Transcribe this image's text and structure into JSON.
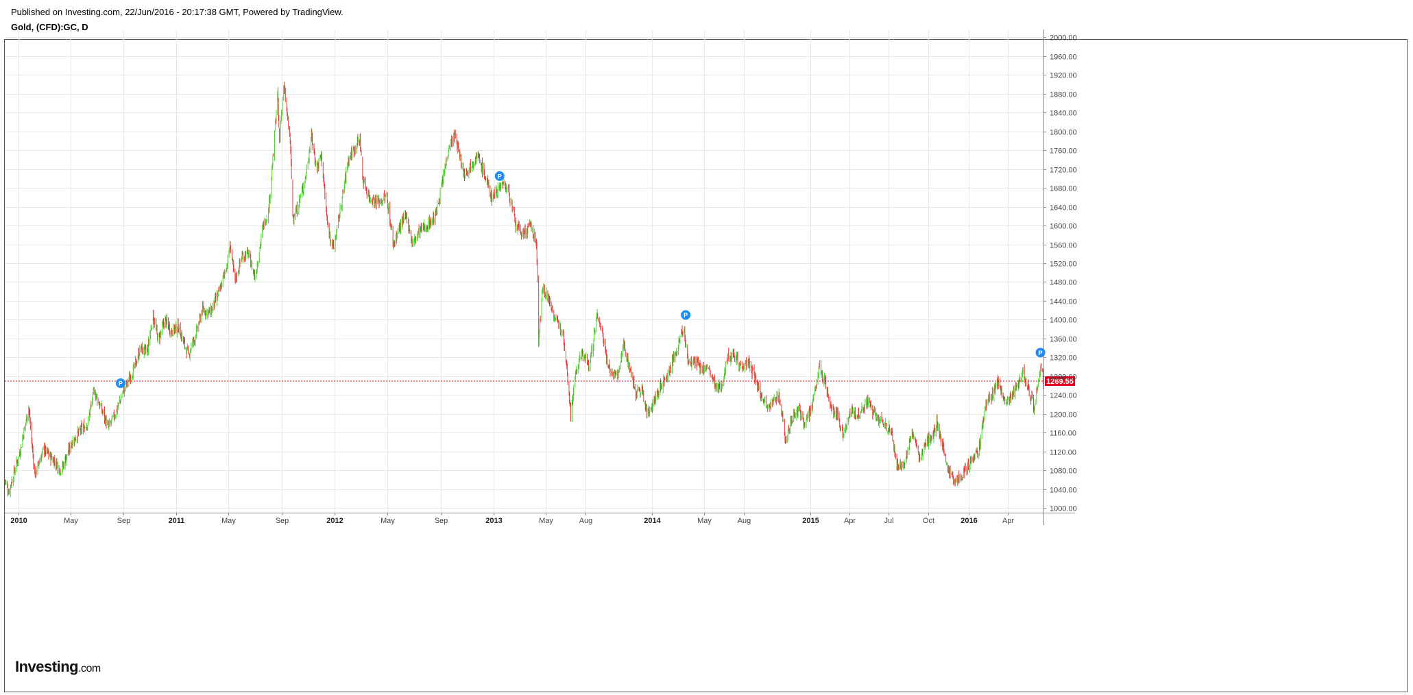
{
  "header": {
    "published": "Published on Investing.com, 22/Jun/2016 - 20:17:38 GMT, Powered by TradingView.",
    "symbol": "Gold, (CFD):GC, D"
  },
  "logo": {
    "main": "Investing",
    "suffix": ".com"
  },
  "chart_data": {
    "type": "candlestick",
    "title": "",
    "xlabel": "",
    "ylabel": "",
    "ylim": [
      990,
      2015
    ],
    "yticks": [
      1000,
      1040,
      1080,
      1120,
      1160,
      1200,
      1240,
      1280,
      1320,
      1360,
      1400,
      1440,
      1480,
      1520,
      1560,
      1600,
      1640,
      1680,
      1720,
      1760,
      1800,
      1840,
      1880,
      1920,
      1960,
      2000
    ],
    "x_range": [
      "2009-12-01",
      "2016-06-22"
    ],
    "xticks": [
      {
        "date": "2010-01-01",
        "label": "2010",
        "bold": true
      },
      {
        "date": "2010-05-01",
        "label": "May",
        "bold": false
      },
      {
        "date": "2010-09-01",
        "label": "Sep",
        "bold": false
      },
      {
        "date": "2011-01-01",
        "label": "2011",
        "bold": true
      },
      {
        "date": "2011-05-01",
        "label": "May",
        "bold": false
      },
      {
        "date": "2011-09-01",
        "label": "Sep",
        "bold": false
      },
      {
        "date": "2012-01-01",
        "label": "2012",
        "bold": true
      },
      {
        "date": "2012-05-01",
        "label": "May",
        "bold": false
      },
      {
        "date": "2012-09-01",
        "label": "Sep",
        "bold": false
      },
      {
        "date": "2013-01-01",
        "label": "2013",
        "bold": true
      },
      {
        "date": "2013-05-01",
        "label": "May",
        "bold": false
      },
      {
        "date": "2013-08-01",
        "label": "Aug",
        "bold": false
      },
      {
        "date": "2014-01-01",
        "label": "2014",
        "bold": true
      },
      {
        "date": "2014-05-01",
        "label": "May",
        "bold": false
      },
      {
        "date": "2014-08-01",
        "label": "Aug",
        "bold": false
      },
      {
        "date": "2015-01-01",
        "label": "2015",
        "bold": true
      },
      {
        "date": "2015-04-01",
        "label": "Apr",
        "bold": false
      },
      {
        "date": "2015-07-01",
        "label": "Jul",
        "bold": false
      },
      {
        "date": "2015-10-01",
        "label": "Oct",
        "bold": false
      },
      {
        "date": "2016-01-01",
        "label": "2016",
        "bold": true
      },
      {
        "date": "2016-04-01",
        "label": "Apr",
        "bold": false
      }
    ],
    "price_path": [
      [
        "2009-12-01",
        1060
      ],
      [
        "2009-12-10",
        1035
      ],
      [
        "2010-01-05",
        1120
      ],
      [
        "2010-01-25",
        1215
      ],
      [
        "2010-02-08",
        1070
      ],
      [
        "2010-03-01",
        1125
      ],
      [
        "2010-03-25",
        1100
      ],
      [
        "2010-04-10",
        1080
      ],
      [
        "2010-05-05",
        1140
      ],
      [
        "2010-05-25",
        1165
      ],
      [
        "2010-06-10",
        1180
      ],
      [
        "2010-06-25",
        1250
      ],
      [
        "2010-07-10",
        1215
      ],
      [
        "2010-07-28",
        1170
      ],
      [
        "2010-08-15",
        1205
      ],
      [
        "2010-09-01",
        1250
      ],
      [
        "2010-09-25",
        1295
      ],
      [
        "2010-10-10",
        1340
      ],
      [
        "2010-10-25",
        1330
      ],
      [
        "2010-11-08",
        1410
      ],
      [
        "2010-11-20",
        1355
      ],
      [
        "2010-12-05",
        1400
      ],
      [
        "2010-12-20",
        1375
      ],
      [
        "2011-01-05",
        1385
      ],
      [
        "2011-01-28",
        1325
      ],
      [
        "2011-02-15",
        1370
      ],
      [
        "2011-03-01",
        1420
      ],
      [
        "2011-03-20",
        1415
      ],
      [
        "2011-04-10",
        1460
      ],
      [
        "2011-04-28",
        1520
      ],
      [
        "2011-05-05",
        1560
      ],
      [
        "2011-05-15",
        1480
      ],
      [
        "2011-06-01",
        1535
      ],
      [
        "2011-06-15",
        1540
      ],
      [
        "2011-07-01",
        1490
      ],
      [
        "2011-07-20",
        1600
      ],
      [
        "2011-08-01",
        1630
      ],
      [
        "2011-08-12",
        1750
      ],
      [
        "2011-08-22",
        1880
      ],
      [
        "2011-08-26",
        1780
      ],
      [
        "2011-09-05",
        1900
      ],
      [
        "2011-09-20",
        1780
      ],
      [
        "2011-09-26",
        1620
      ],
      [
        "2011-10-05",
        1630
      ],
      [
        "2011-10-25",
        1700
      ],
      [
        "2011-11-08",
        1790
      ],
      [
        "2011-11-20",
        1720
      ],
      [
        "2011-12-01",
        1750
      ],
      [
        "2011-12-15",
        1600
      ],
      [
        "2011-12-29",
        1550
      ],
      [
        "2012-01-15",
        1640
      ],
      [
        "2012-02-01",
        1740
      ],
      [
        "2012-02-28",
        1785
      ],
      [
        "2012-03-05",
        1700
      ],
      [
        "2012-03-20",
        1660
      ],
      [
        "2012-04-10",
        1650
      ],
      [
        "2012-04-30",
        1660
      ],
      [
        "2012-05-15",
        1560
      ],
      [
        "2012-05-31",
        1600
      ],
      [
        "2012-06-15",
        1620
      ],
      [
        "2012-06-28",
        1560
      ],
      [
        "2012-07-15",
        1590
      ],
      [
        "2012-08-01",
        1600
      ],
      [
        "2012-08-20",
        1620
      ],
      [
        "2012-09-05",
        1690
      ],
      [
        "2012-09-20",
        1770
      ],
      [
        "2012-10-04",
        1790
      ],
      [
        "2012-10-25",
        1710
      ],
      [
        "2012-11-10",
        1730
      ],
      [
        "2012-11-25",
        1750
      ],
      [
        "2012-12-10",
        1710
      ],
      [
        "2012-12-28",
        1660
      ],
      [
        "2013-01-20",
        1690
      ],
      [
        "2013-02-05",
        1675
      ],
      [
        "2013-02-20",
        1600
      ],
      [
        "2013-03-10",
        1580
      ],
      [
        "2013-03-28",
        1600
      ],
      [
        "2013-04-10",
        1560
      ],
      [
        "2013-04-15",
        1360
      ],
      [
        "2013-04-25",
        1470
      ],
      [
        "2013-05-10",
        1440
      ],
      [
        "2013-05-28",
        1390
      ],
      [
        "2013-06-10",
        1380
      ],
      [
        "2013-06-20",
        1290
      ],
      [
        "2013-06-28",
        1200
      ],
      [
        "2013-07-10",
        1290
      ],
      [
        "2013-07-25",
        1330
      ],
      [
        "2013-08-10",
        1300
      ],
      [
        "2013-08-28",
        1410
      ],
      [
        "2013-09-10",
        1370
      ],
      [
        "2013-09-20",
        1310
      ],
      [
        "2013-10-01",
        1285
      ],
      [
        "2013-10-15",
        1280
      ],
      [
        "2013-10-28",
        1350
      ],
      [
        "2013-11-10",
        1300
      ],
      [
        "2013-11-25",
        1245
      ],
      [
        "2013-12-10",
        1250
      ],
      [
        "2013-12-20",
        1200
      ],
      [
        "2014-01-05",
        1225
      ],
      [
        "2014-01-25",
        1265
      ],
      [
        "2014-02-10",
        1290
      ],
      [
        "2014-03-01",
        1340
      ],
      [
        "2014-03-15",
        1385
      ],
      [
        "2014-03-25",
        1310
      ],
      [
        "2014-04-10",
        1310
      ],
      [
        "2014-04-25",
        1295
      ],
      [
        "2014-05-10",
        1300
      ],
      [
        "2014-05-30",
        1250
      ],
      [
        "2014-06-10",
        1260
      ],
      [
        "2014-06-25",
        1320
      ],
      [
        "2014-07-10",
        1330
      ],
      [
        "2014-07-25",
        1300
      ],
      [
        "2014-08-10",
        1310
      ],
      [
        "2014-08-25",
        1280
      ],
      [
        "2014-09-10",
        1240
      ],
      [
        "2014-09-25",
        1220
      ],
      [
        "2014-10-10",
        1225
      ],
      [
        "2014-10-20",
        1245
      ],
      [
        "2014-11-05",
        1145
      ],
      [
        "2014-11-20",
        1190
      ],
      [
        "2014-12-05",
        1210
      ],
      [
        "2014-12-20",
        1180
      ],
      [
        "2015-01-05",
        1210
      ],
      [
        "2015-01-22",
        1300
      ],
      [
        "2015-02-05",
        1265
      ],
      [
        "2015-02-20",
        1205
      ],
      [
        "2015-03-05",
        1200
      ],
      [
        "2015-03-18",
        1150
      ],
      [
        "2015-04-01",
        1200
      ],
      [
        "2015-04-20",
        1200
      ],
      [
        "2015-05-15",
        1225
      ],
      [
        "2015-06-01",
        1190
      ],
      [
        "2015-06-20",
        1180
      ],
      [
        "2015-07-01",
        1170
      ],
      [
        "2015-07-10",
        1150
      ],
      [
        "2015-07-20",
        1090
      ],
      [
        "2015-08-05",
        1090
      ],
      [
        "2015-08-25",
        1160
      ],
      [
        "2015-09-10",
        1105
      ],
      [
        "2015-09-25",
        1140
      ],
      [
        "2015-10-10",
        1155
      ],
      [
        "2015-10-20",
        1180
      ],
      [
        "2015-11-01",
        1140
      ],
      [
        "2015-11-15",
        1080
      ],
      [
        "2015-12-01",
        1060
      ],
      [
        "2015-12-15",
        1065
      ],
      [
        "2016-01-05",
        1100
      ],
      [
        "2016-01-25",
        1120
      ],
      [
        "2016-02-10",
        1220
      ],
      [
        "2016-02-25",
        1240
      ],
      [
        "2016-03-10",
        1270
      ],
      [
        "2016-03-25",
        1220
      ],
      [
        "2016-04-10",
        1240
      ],
      [
        "2016-04-25",
        1270
      ],
      [
        "2016-05-05",
        1290
      ],
      [
        "2016-05-20",
        1250
      ],
      [
        "2016-06-01",
        1210
      ],
      [
        "2016-06-10",
        1275
      ],
      [
        "2016-06-17",
        1300
      ],
      [
        "2016-06-22",
        1269.55
      ]
    ],
    "current_price": 1269.55,
    "current_price_label": "1269.55",
    "up_color": "#4ccd2f",
    "down_color": "#e03a3a",
    "price_line_color": "#e0001b",
    "grid": true,
    "markers": [
      {
        "date": "2010-08-25",
        "price": 1265,
        "label": "P"
      },
      {
        "date": "2013-01-15",
        "price": 1705,
        "label": "P"
      },
      {
        "date": "2014-03-20",
        "price": 1410,
        "label": "P"
      },
      {
        "date": "2016-06-15",
        "price": 1330,
        "label": "P"
      }
    ],
    "marker_color": "#1e8cf0"
  }
}
